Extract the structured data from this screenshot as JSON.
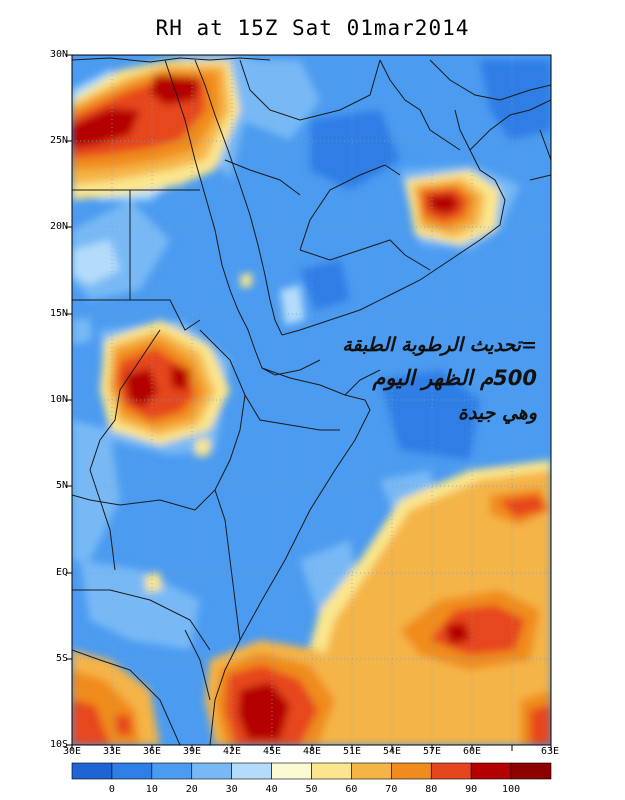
{
  "title": "RH at 15Z Sat 01mar2014",
  "lat_labels": [
    "30N",
    "25N",
    "20N",
    "15N",
    "10N",
    "5N",
    "EQ",
    "5S",
    "10S"
  ],
  "lon_labels": [
    "30E",
    "33E",
    "36E",
    "39E",
    "42E",
    "45E",
    "48E",
    "51E",
    "54E",
    "57E",
    "60E",
    "63E"
  ],
  "annotation": {
    "line1": "=تحديث الرطوبة الطبقة",
    "line2": "500م الظهر اليوم",
    "line3": "وهي جيدة"
  },
  "colorbar": {
    "labels": [
      "0",
      "10",
      "20",
      "30",
      "40",
      "50",
      "60",
      "70",
      "80",
      "90",
      "100"
    ],
    "colors": [
      "#1e64d2",
      "#2d7ee6",
      "#4b9bf0",
      "#78b9f5",
      "#b4dcfa",
      "#fafad2",
      "#fae68c",
      "#f5b446",
      "#f08c1e",
      "#e6461e",
      "#b40000",
      "#8c0000"
    ]
  }
}
